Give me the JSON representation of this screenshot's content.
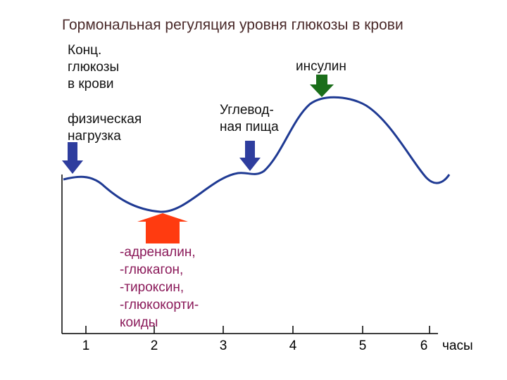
{
  "title": "Гормональная регуляция уровня глюкозы в крови",
  "y_axis_label": "Конц.\nглюкозы\nв крови",
  "x_axis_unit": "часы",
  "x_ticks": [
    "1",
    "2",
    "3",
    "4",
    "5",
    "6"
  ],
  "annotations": {
    "exercise": "физическая\nнагрузка",
    "carbohydrate_food": "Углевод-\nная пища",
    "insulin": "инсулин",
    "counter_hormones": "-адреналин,\n-глюкагон,\n-тироксин,\n-глюкокорти-\nкоиды"
  },
  "colors": {
    "curve": "#1f3a93",
    "exercise_arrow": "#2e3d9e",
    "carb_arrow": "#2e3d9e",
    "insulin_arrow": "#1a6e1a",
    "hormone_arrow": "#ff3b10",
    "hormone_text": "#8b1a5a",
    "axis": "#000000"
  }
}
